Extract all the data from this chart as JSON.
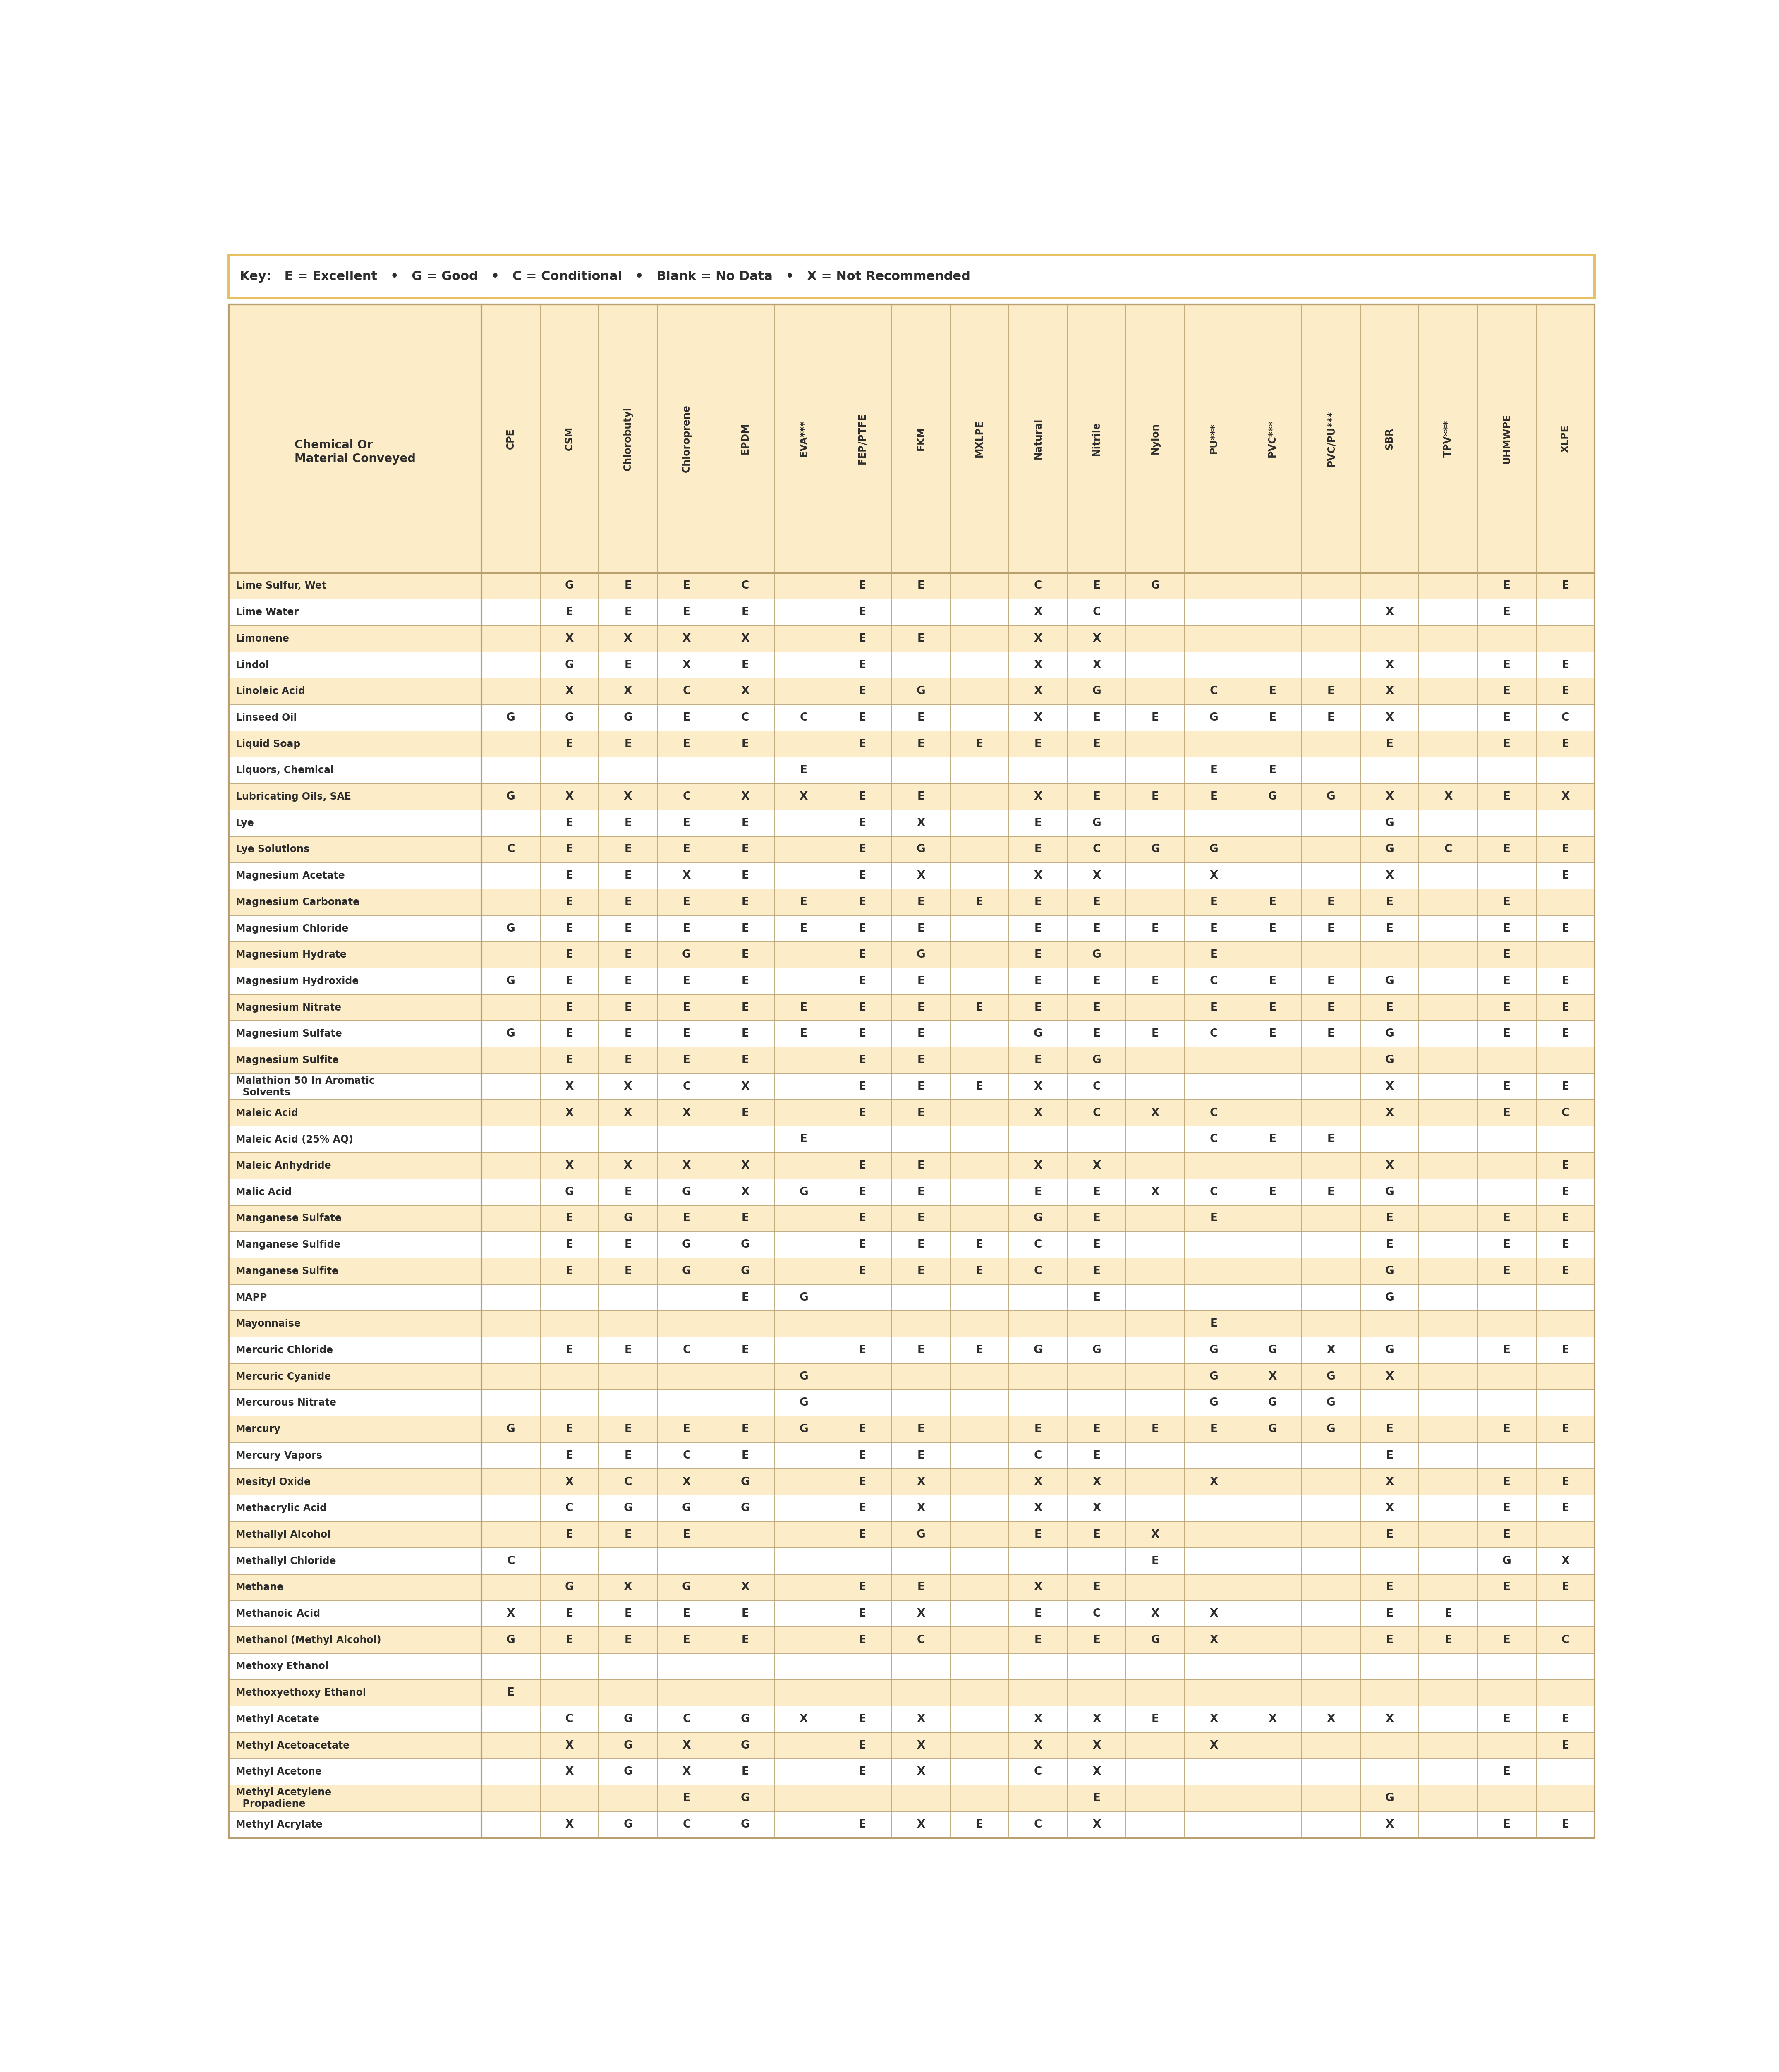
{
  "key_text": "Key:   E = Excellent   •   G = Good   •   C = Conditional   •   Blank = No Data   •   X = Not Recommended",
  "header_col": "Chemical Or\nMaterial Conveyed",
  "columns": [
    "CPE",
    "CSM",
    "Chlorobutyl",
    "Chloroprene",
    "EPDM",
    "EVA***",
    "FEP/PTFE",
    "FKM",
    "MXLPE",
    "Natural",
    "Nitrile",
    "Nylon",
    "PU***",
    "PVC***",
    "PVC/PU***",
    "SBR",
    "TPV***",
    "UHMWPE",
    "XLPE"
  ],
  "rows": [
    {
      "name": "Lime Sulfur, Wet",
      "data": [
        "",
        "G",
        "E",
        "E",
        "C",
        "",
        "E",
        "E",
        "",
        "C",
        "E",
        "G",
        "",
        "",
        "",
        "",
        "",
        "E",
        "E"
      ]
    },
    {
      "name": "Lime Water",
      "data": [
        "",
        "E",
        "E",
        "E",
        "E",
        "",
        "E",
        "",
        "",
        "X",
        "C",
        "",
        "",
        "",
        "",
        "X",
        "",
        "E",
        ""
      ]
    },
    {
      "name": "Limonene",
      "data": [
        "",
        "X",
        "X",
        "X",
        "X",
        "",
        "E",
        "E",
        "",
        "X",
        "X",
        "",
        "",
        "",
        "",
        "",
        "",
        "",
        ""
      ]
    },
    {
      "name": "Lindol",
      "data": [
        "",
        "G",
        "E",
        "X",
        "E",
        "",
        "E",
        "",
        "",
        "X",
        "X",
        "",
        "",
        "",
        "",
        "X",
        "",
        "E",
        "E"
      ]
    },
    {
      "name": "Linoleic Acid",
      "data": [
        "",
        "X",
        "X",
        "C",
        "X",
        "",
        "E",
        "G",
        "",
        "X",
        "G",
        "",
        "C",
        "E",
        "E",
        "X",
        "",
        "E",
        "E"
      ]
    },
    {
      "name": "Linseed Oil",
      "data": [
        "G",
        "G",
        "G",
        "E",
        "C",
        "C",
        "E",
        "E",
        "",
        "X",
        "E",
        "E",
        "G",
        "E",
        "E",
        "X",
        "",
        "E",
        "C"
      ]
    },
    {
      "name": "Liquid Soap",
      "data": [
        "",
        "E",
        "E",
        "E",
        "E",
        "",
        "E",
        "E",
        "E",
        "E",
        "E",
        "",
        "",
        "",
        "",
        "E",
        "",
        "E",
        "E"
      ]
    },
    {
      "name": "Liquors, Chemical",
      "data": [
        "",
        "",
        "",
        "",
        "",
        "E",
        "",
        "",
        "",
        "",
        "",
        "",
        "E",
        "E",
        "",
        "",
        "",
        "",
        ""
      ]
    },
    {
      "name": "Lubricating Oils, SAE",
      "data": [
        "G",
        "X",
        "X",
        "C",
        "X",
        "X",
        "E",
        "E",
        "",
        "X",
        "E",
        "E",
        "E",
        "G",
        "G",
        "X",
        "X",
        "E",
        "X"
      ]
    },
    {
      "name": "Lye",
      "data": [
        "",
        "E",
        "E",
        "E",
        "E",
        "",
        "E",
        "X",
        "",
        "E",
        "G",
        "",
        "",
        "",
        "",
        "G",
        "",
        "",
        ""
      ]
    },
    {
      "name": "Lye Solutions",
      "data": [
        "C",
        "E",
        "E",
        "E",
        "E",
        "",
        "E",
        "G",
        "",
        "E",
        "C",
        "G",
        "G",
        "",
        "",
        "G",
        "C",
        "E",
        "E"
      ]
    },
    {
      "name": "Magnesium Acetate",
      "data": [
        "",
        "E",
        "E",
        "X",
        "E",
        "",
        "E",
        "X",
        "",
        "X",
        "X",
        "",
        "X",
        "",
        "",
        "X",
        "",
        "",
        "E"
      ]
    },
    {
      "name": "Magnesium Carbonate",
      "data": [
        "",
        "E",
        "E",
        "E",
        "E",
        "E",
        "E",
        "E",
        "E",
        "E",
        "E",
        "",
        "E",
        "E",
        "E",
        "E",
        "",
        "E",
        ""
      ]
    },
    {
      "name": "Magnesium Chloride",
      "data": [
        "G",
        "E",
        "E",
        "E",
        "E",
        "E",
        "E",
        "E",
        "",
        "E",
        "E",
        "E",
        "E",
        "E",
        "E",
        "E",
        "",
        "E",
        "E"
      ]
    },
    {
      "name": "Magnesium Hydrate",
      "data": [
        "",
        "E",
        "E",
        "G",
        "E",
        "",
        "E",
        "G",
        "",
        "E",
        "G",
        "",
        "E",
        "",
        "",
        "",
        "",
        "E",
        ""
      ]
    },
    {
      "name": "Magnesium Hydroxide",
      "data": [
        "G",
        "E",
        "E",
        "E",
        "E",
        "",
        "E",
        "E",
        "",
        "E",
        "E",
        "E",
        "C",
        "E",
        "E",
        "G",
        "",
        "E",
        "E"
      ]
    },
    {
      "name": "Magnesium Nitrate",
      "data": [
        "",
        "E",
        "E",
        "E",
        "E",
        "E",
        "E",
        "E",
        "E",
        "E",
        "E",
        "",
        "E",
        "E",
        "E",
        "E",
        "",
        "E",
        "E"
      ]
    },
    {
      "name": "Magnesium Sulfate",
      "data": [
        "G",
        "E",
        "E",
        "E",
        "E",
        "E",
        "E",
        "E",
        "",
        "G",
        "E",
        "E",
        "C",
        "E",
        "E",
        "G",
        "",
        "E",
        "E"
      ]
    },
    {
      "name": "Magnesium Sulfite",
      "data": [
        "",
        "E",
        "E",
        "E",
        "E",
        "",
        "E",
        "E",
        "",
        "E",
        "G",
        "",
        "",
        "",
        "",
        "G",
        "",
        "",
        ""
      ]
    },
    {
      "name": "Malathion 50 In Aromatic\n  Solvents",
      "data": [
        "",
        "X",
        "X",
        "C",
        "X",
        "",
        "E",
        "E",
        "E",
        "X",
        "C",
        "",
        "",
        "",
        "",
        "X",
        "",
        "E",
        "E"
      ]
    },
    {
      "name": "Maleic Acid",
      "data": [
        "",
        "X",
        "X",
        "X",
        "E",
        "",
        "E",
        "E",
        "",
        "X",
        "C",
        "X",
        "C",
        "",
        "",
        "X",
        "",
        "E",
        "C"
      ]
    },
    {
      "name": "Maleic Acid (25% AQ)",
      "data": [
        "",
        "",
        "",
        "",
        "",
        "E",
        "",
        "",
        "",
        "",
        "",
        "",
        "C",
        "E",
        "E",
        "",
        "",
        "",
        ""
      ]
    },
    {
      "name": "Maleic Anhydride",
      "data": [
        "",
        "X",
        "X",
        "X",
        "X",
        "",
        "E",
        "E",
        "",
        "X",
        "X",
        "",
        "",
        "",
        "",
        "X",
        "",
        "",
        "E"
      ]
    },
    {
      "name": "Malic Acid",
      "data": [
        "",
        "G",
        "E",
        "G",
        "X",
        "G",
        "E",
        "E",
        "",
        "E",
        "E",
        "X",
        "C",
        "E",
        "E",
        "G",
        "",
        "",
        "E"
      ]
    },
    {
      "name": "Manganese Sulfate",
      "data": [
        "",
        "E",
        "G",
        "E",
        "E",
        "",
        "E",
        "E",
        "",
        "G",
        "E",
        "",
        "E",
        "",
        "",
        "E",
        "",
        "E",
        "E"
      ]
    },
    {
      "name": "Manganese Sulfide",
      "data": [
        "",
        "E",
        "E",
        "G",
        "G",
        "",
        "E",
        "E",
        "E",
        "C",
        "E",
        "",
        "",
        "",
        "",
        "E",
        "",
        "E",
        "E"
      ]
    },
    {
      "name": "Manganese Sulfite",
      "data": [
        "",
        "E",
        "E",
        "G",
        "G",
        "",
        "E",
        "E",
        "E",
        "C",
        "E",
        "",
        "",
        "",
        "",
        "G",
        "",
        "E",
        "E"
      ]
    },
    {
      "name": "MAPP",
      "data": [
        "",
        "",
        "",
        "",
        "E",
        "G",
        "",
        "",
        "",
        "",
        "E",
        "",
        "",
        "",
        "",
        "G",
        "",
        "",
        ""
      ]
    },
    {
      "name": "Mayonnaise",
      "data": [
        "",
        "",
        "",
        "",
        "",
        "",
        "",
        "",
        "",
        "",
        "",
        "",
        "E",
        "",
        "",
        "",
        "",
        "",
        ""
      ]
    },
    {
      "name": "Mercuric Chloride",
      "data": [
        "",
        "E",
        "E",
        "C",
        "E",
        "",
        "E",
        "E",
        "E",
        "G",
        "G",
        "",
        "G",
        "G",
        "X",
        "G",
        "",
        "E",
        "E"
      ]
    },
    {
      "name": "Mercuric Cyanide",
      "data": [
        "",
        "",
        "",
        "",
        "",
        "G",
        "",
        "",
        "",
        "",
        "",
        "",
        "G",
        "X",
        "G",
        "X",
        "",
        "",
        ""
      ]
    },
    {
      "name": "Mercurous Nitrate",
      "data": [
        "",
        "",
        "",
        "",
        "",
        "G",
        "",
        "",
        "",
        "",
        "",
        "",
        "G",
        "G",
        "G",
        "",
        "",
        "",
        ""
      ]
    },
    {
      "name": "Mercury",
      "data": [
        "G",
        "E",
        "E",
        "E",
        "E",
        "G",
        "E",
        "E",
        "",
        "E",
        "E",
        "E",
        "E",
        "G",
        "G",
        "E",
        "",
        "E",
        "E"
      ]
    },
    {
      "name": "Mercury Vapors",
      "data": [
        "",
        "E",
        "E",
        "C",
        "E",
        "",
        "E",
        "E",
        "",
        "C",
        "E",
        "",
        "",
        "",
        "",
        "E",
        "",
        "",
        ""
      ]
    },
    {
      "name": "Mesityl Oxide",
      "data": [
        "",
        "X",
        "C",
        "X",
        "G",
        "",
        "E",
        "X",
        "",
        "X",
        "X",
        "",
        "X",
        "",
        "",
        "X",
        "",
        "E",
        "E"
      ]
    },
    {
      "name": "Methacrylic Acid",
      "data": [
        "",
        "C",
        "G",
        "G",
        "G",
        "",
        "E",
        "X",
        "",
        "X",
        "X",
        "",
        "",
        "",
        "",
        "X",
        "",
        "E",
        "E"
      ]
    },
    {
      "name": "Methallyl Alcohol",
      "data": [
        "",
        "E",
        "E",
        "E",
        "",
        "",
        "E",
        "G",
        "",
        "E",
        "E",
        "X",
        "",
        "",
        "",
        "E",
        "",
        "E",
        ""
      ]
    },
    {
      "name": "Methallyl Chloride",
      "data": [
        "C",
        "",
        "",
        "",
        "",
        "",
        "",
        "",
        "",
        "",
        "",
        "E",
        "",
        "",
        "",
        "",
        "",
        "G",
        "X"
      ]
    },
    {
      "name": "Methane",
      "data": [
        "",
        "G",
        "X",
        "G",
        "X",
        "",
        "E",
        "E",
        "",
        "X",
        "E",
        "",
        "",
        "",
        "",
        "E",
        "",
        "E",
        "E"
      ]
    },
    {
      "name": "Methanoic Acid",
      "data": [
        "X",
        "E",
        "E",
        "E",
        "E",
        "",
        "E",
        "X",
        "",
        "E",
        "C",
        "X",
        "X",
        "",
        "",
        "E",
        "E",
        "",
        ""
      ]
    },
    {
      "name": "Methanol (Methyl Alcohol)",
      "data": [
        "G",
        "E",
        "E",
        "E",
        "E",
        "",
        "E",
        "C",
        "",
        "E",
        "E",
        "G",
        "X",
        "",
        "",
        "E",
        "E",
        "E",
        "C"
      ]
    },
    {
      "name": "Methoxy Ethanol",
      "data": [
        "",
        "",
        "",
        "",
        "",
        "",
        "",
        "",
        "",
        "",
        "",
        "",
        "",
        "",
        "",
        "",
        "",
        "",
        ""
      ]
    },
    {
      "name": "Methoxyethoxy Ethanol",
      "data": [
        "E",
        "",
        "",
        "",
        "",
        "",
        "",
        "",
        "",
        "",
        "",
        "",
        "",
        "",
        "",
        "",
        "",
        "",
        ""
      ]
    },
    {
      "name": "Methyl Acetate",
      "data": [
        "",
        "C",
        "G",
        "C",
        "G",
        "X",
        "E",
        "X",
        "",
        "X",
        "X",
        "E",
        "X",
        "X",
        "X",
        "X",
        "",
        "E",
        "E"
      ]
    },
    {
      "name": "Methyl Acetoacetate",
      "data": [
        "",
        "X",
        "G",
        "X",
        "G",
        "",
        "E",
        "X",
        "",
        "X",
        "X",
        "",
        "X",
        "",
        "",
        "",
        "",
        "",
        "E"
      ]
    },
    {
      "name": "Methyl Acetone",
      "data": [
        "",
        "X",
        "G",
        "X",
        "E",
        "",
        "E",
        "X",
        "",
        "C",
        "X",
        "",
        "",
        "",
        "",
        "",
        "",
        "E",
        ""
      ]
    },
    {
      "name": "Methyl Acetylene\n  Propadiene",
      "data": [
        "",
        "",
        "",
        "E",
        "G",
        "",
        "",
        "",
        "",
        "",
        "E",
        "",
        "",
        "",
        "",
        "G",
        "",
        "",
        ""
      ]
    },
    {
      "name": "Methyl Acrylate",
      "data": [
        "",
        "X",
        "G",
        "C",
        "G",
        "",
        "E",
        "X",
        "E",
        "C",
        "X",
        "",
        "",
        "",
        "",
        "X",
        "",
        "E",
        "E"
      ]
    }
  ],
  "bg_color_light": "#FDECC8",
  "bg_color_white": "#FFFFFF",
  "border_color": "#B8A070",
  "text_color": "#2D2D2D",
  "key_border": "#E8C060",
  "stripe_odd": "#FFFFFF",
  "stripe_even": "#FDECC8",
  "header_bg": "#FDECC8"
}
